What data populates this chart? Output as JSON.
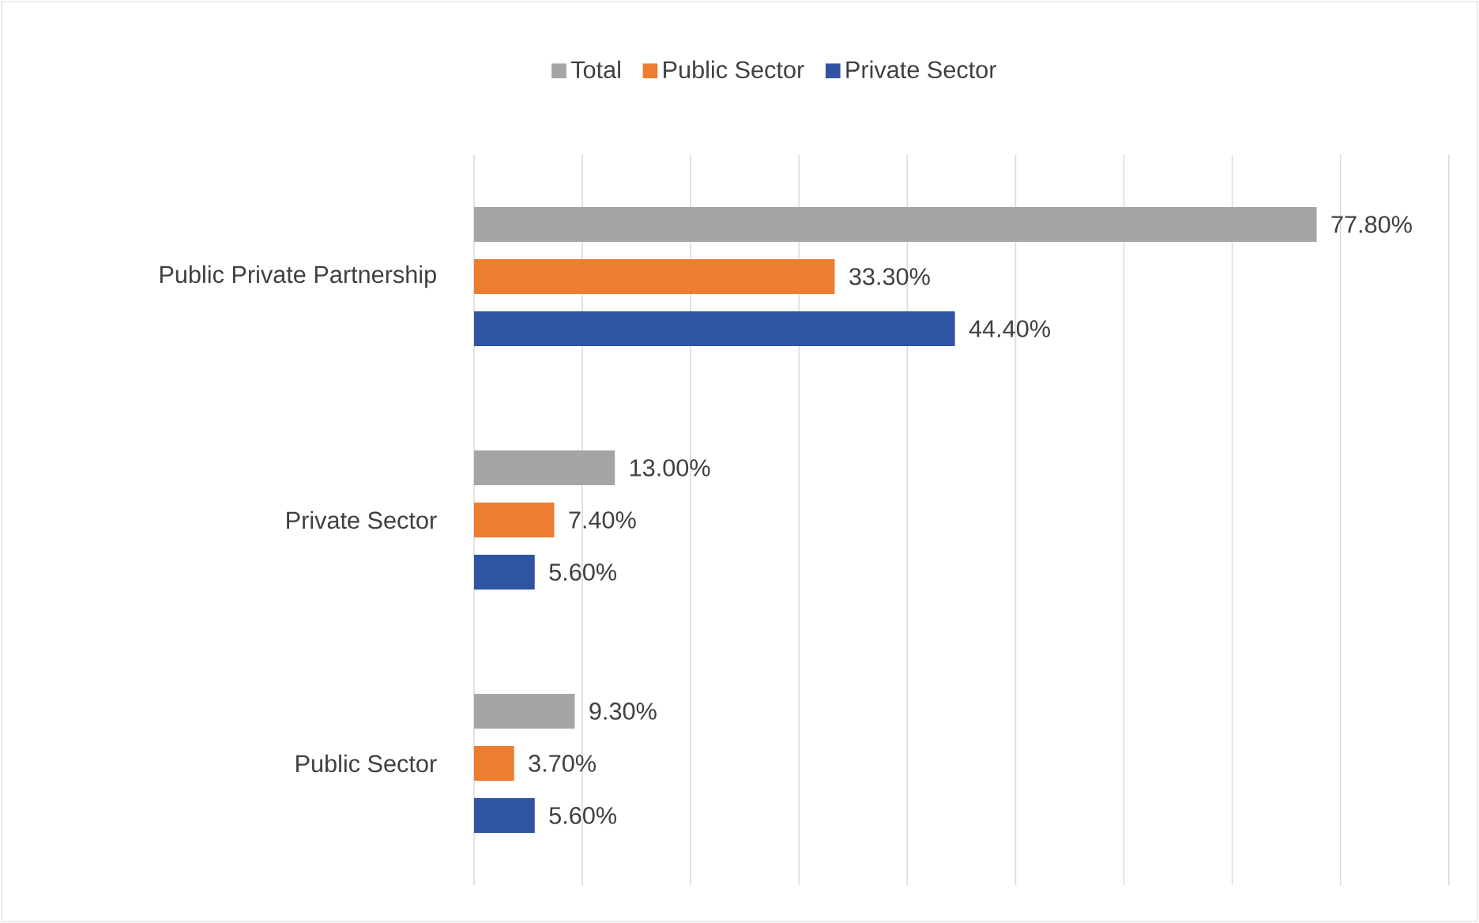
{
  "chart_data": {
    "type": "bar",
    "orientation": "horizontal",
    "categories": [
      "Public Private Partnership",
      "Private Sector",
      "Public Sector"
    ],
    "series": [
      {
        "name": "Total",
        "color": "#a5a5a5",
        "values": [
          77.8,
          13.0,
          9.3
        ],
        "value_labels": [
          "77.80%",
          "13.00%",
          "9.30%"
        ]
      },
      {
        "name": "Public Sector",
        "color": "#ed7d31",
        "values": [
          33.3,
          7.4,
          3.7
        ],
        "value_labels": [
          "33.30%",
          "7.40%",
          "3.70%"
        ]
      },
      {
        "name": "Private Sector",
        "color": "#2f54a3",
        "values": [
          44.4,
          5.6,
          5.6
        ],
        "value_labels": [
          "44.40%",
          "5.60%",
          "5.60%"
        ]
      }
    ],
    "grid": "x",
    "legend": "top",
    "tick_labels": "y"
  }
}
